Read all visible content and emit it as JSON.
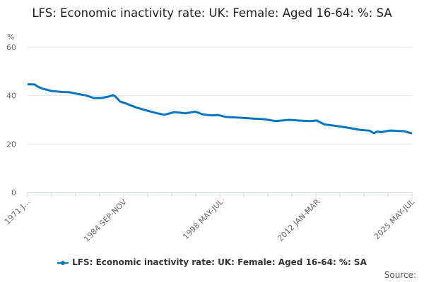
{
  "chart_data": {
    "type": "line",
    "title": "LFS: Economic inactivity rate: UK: Female: Aged 16-64: %: SA",
    "ylabel": "%",
    "xlabel": "",
    "ylim": [
      0,
      60
    ],
    "yticks": [
      "0",
      "20",
      "40",
      "60"
    ],
    "xlim": [
      1971.0,
      2025.5
    ],
    "xtick_labels": [
      {
        "label": "1971 J...",
        "x": 1971.0
      },
      {
        "label": "1984 SEP-NOV",
        "x": 1984.7
      },
      {
        "label": "1998 MAY-JUL",
        "x": 1998.4
      },
      {
        "label": "2012 JAN-MAR",
        "x": 2012.1
      },
      {
        "label": "2025 MAY-JUL",
        "x": 2025.5
      }
    ],
    "grid": true,
    "legend_position": "bottom",
    "series": [
      {
        "name": "LFS: Economic inactivity rate: UK: Female: Aged 16-64: %: SA",
        "color": "#0077c0",
        "x": [
          1971.0,
          1972.0,
          1972.4,
          1973.1,
          1974.4,
          1976.0,
          1977.0,
          1978.1,
          1979.3,
          1980.4,
          1981.4,
          1982.3,
          1983.1,
          1983.4,
          1984.1,
          1985.1,
          1986.4,
          1988.1,
          1989.4,
          1990.4,
          1991.8,
          1993.4,
          1994.8,
          1995.8,
          1997.1,
          1998.0,
          1999.1,
          2001.0,
          2003.1,
          2004.5,
          2006.1,
          2008.1,
          2009.5,
          2011.1,
          2012.0,
          2013.1,
          2014.5,
          2016.1,
          2018.1,
          2019.5,
          2020.1,
          2020.6,
          2021.1,
          2022.4,
          2023.5,
          2024.4,
          2025.0,
          2025.5
        ],
        "values": [
          44.7,
          44.6,
          43.8,
          42.9,
          41.9,
          41.5,
          41.4,
          40.7,
          40.1,
          39.0,
          39.0,
          39.5,
          40.2,
          39.8,
          37.6,
          36.6,
          35.1,
          33.7,
          32.7,
          32.1,
          33.2,
          32.7,
          33.4,
          32.3,
          31.8,
          32.0,
          31.2,
          30.9,
          30.5,
          30.3,
          29.5,
          30.0,
          29.7,
          29.5,
          29.7,
          28.1,
          27.6,
          26.9,
          25.9,
          25.5,
          24.5,
          25.2,
          24.9,
          25.6,
          25.4,
          25.3,
          24.8,
          24.4
        ]
      }
    ]
  },
  "legend_label": "LFS: Economic inactivity rate: UK: Female: Aged 16-64: %: SA",
  "source_label": "Source:"
}
